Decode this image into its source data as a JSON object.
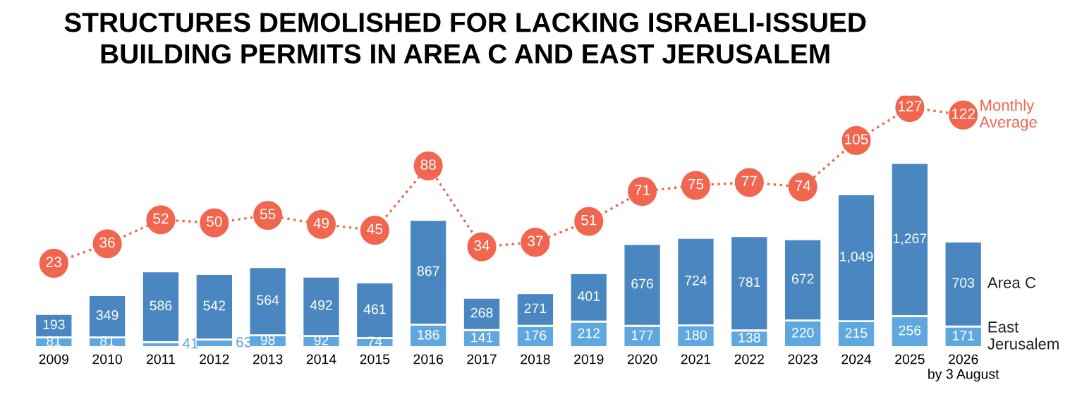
{
  "chart_data": {
    "type": "bar",
    "title": "STRUCTURES DEMOLISHED FOR LACKING ISRAELI-ISSUED\nBUILDING PERMITS IN AREA C AND EAST JERUSALEM",
    "categories": [
      "2009",
      "2010",
      "2011",
      "2012",
      "2013",
      "2014",
      "2015",
      "2016",
      "2017",
      "2018",
      "2019",
      "2020",
      "2021",
      "2022",
      "2023",
      "2024",
      "2025",
      "2026\nby 3 August"
    ],
    "stacked": true,
    "data_labels": true,
    "legend": "right",
    "grid": false,
    "tick_labels": "x",
    "series": [
      {
        "name": "East Jerusalem",
        "color": "#5fa8df",
        "values": [
          81,
          81,
          41,
          63,
          98,
          92,
          74,
          186,
          141,
          176,
          212,
          177,
          180,
          138,
          220,
          215,
          256,
          171
        ]
      },
      {
        "name": "Area C",
        "color": "#4a87c0",
        "values": [
          193,
          349,
          586,
          542,
          564,
          492,
          461,
          867,
          268,
          271,
          401,
          676,
          724,
          781,
          672,
          1049,
          1267,
          703
        ],
        "value_labels": [
          "193",
          "349",
          "586",
          "542",
          "564",
          "492",
          "461",
          "867",
          "268",
          "271",
          "401",
          "676",
          "724",
          "781",
          "672",
          "1,049",
          "1,267",
          "703"
        ]
      },
      {
        "name": "Monthly Average",
        "type": "line",
        "axis": "y2",
        "color": "#f0664f",
        "line_style": "dotted",
        "marker": "circle",
        "values": [
          23,
          36,
          52,
          50,
          55,
          49,
          45,
          88,
          34,
          37,
          51,
          71,
          75,
          77,
          74,
          105,
          127,
          122
        ]
      }
    ]
  }
}
